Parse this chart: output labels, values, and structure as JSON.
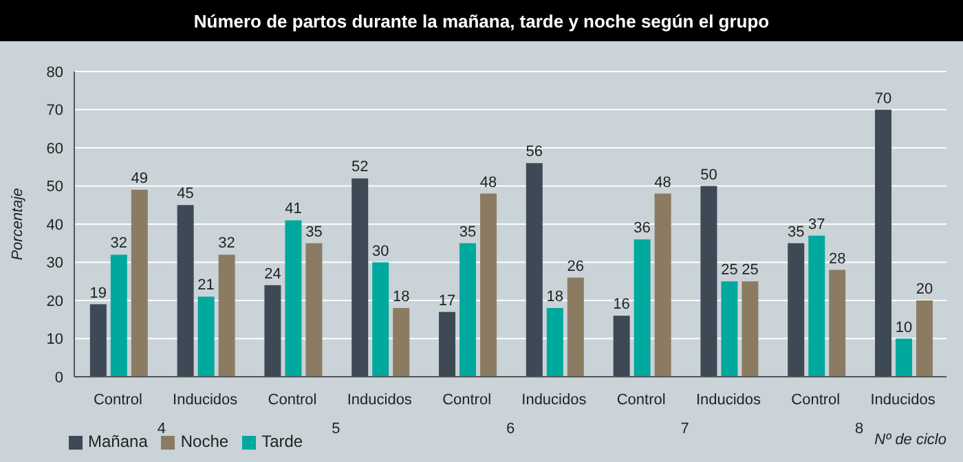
{
  "chart_data": {
    "type": "bar",
    "title": "Número de partos durante la mañana, tarde y noche según el grupo",
    "categories": [
      "Control",
      "Inducidos",
      "Control",
      "Inducidos",
      "Control",
      "Inducidos",
      "Control",
      "Inducidos",
      "Control",
      "Inducidos"
    ],
    "series": [
      {
        "name": "Mañana",
        "color": "#3d4a55",
        "values": [
          19,
          45,
          24,
          52,
          17,
          56,
          16,
          50,
          35,
          70
        ]
      },
      {
        "name": "Tarde",
        "color": "#00a99d",
        "values": [
          32,
          21,
          41,
          30,
          35,
          18,
          36,
          25,
          37,
          10
        ]
      },
      {
        "name": "Noche",
        "color": "#8c7b63",
        "values": [
          49,
          32,
          35,
          18,
          48,
          26,
          48,
          25,
          28,
          20
        ]
      }
    ],
    "annotations": [
      "4",
      "5",
      "6",
      "7",
      "8"
    ],
    "xlabel": "Nº de ciclo",
    "ylabel": "Porcentaje",
    "ylim": [
      0,
      80
    ],
    "yticks": [
      0,
      10,
      20,
      30,
      40,
      50,
      60,
      70,
      80
    ],
    "grid": "y",
    "legend": "bottom left",
    "data_labels": true
  }
}
